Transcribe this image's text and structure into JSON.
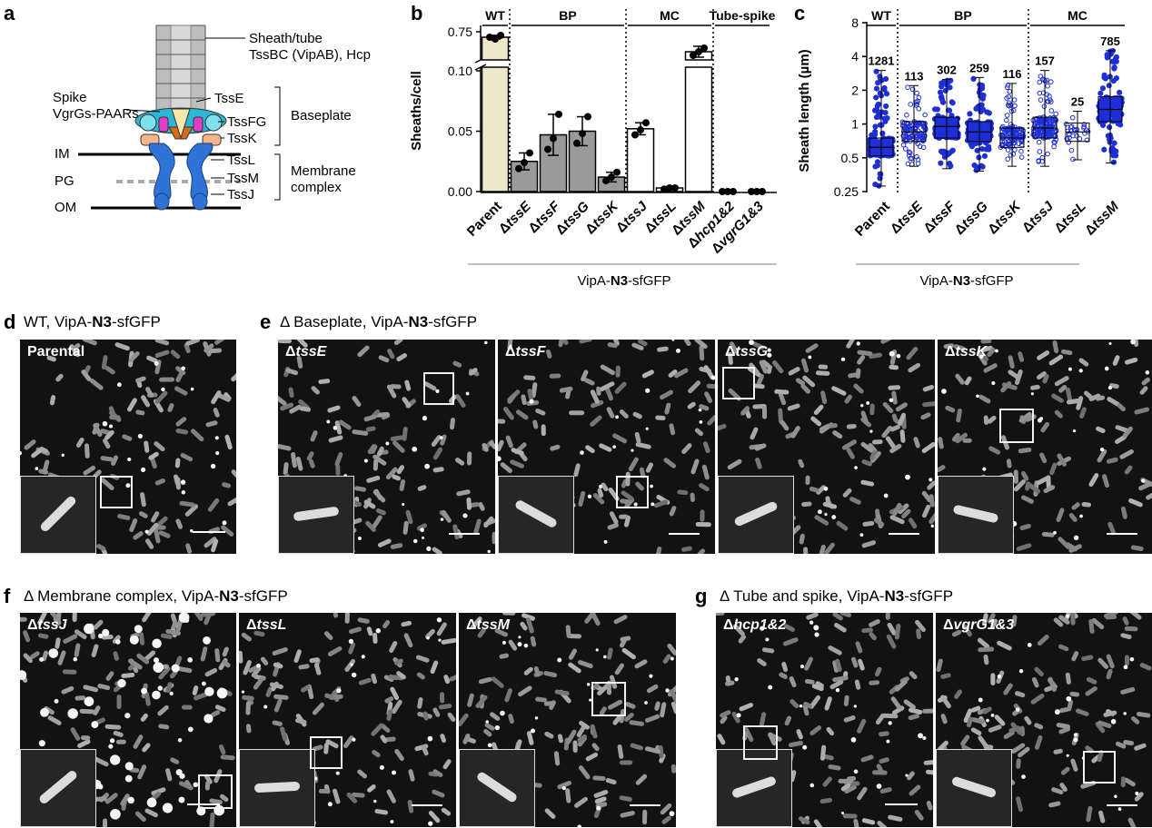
{
  "panels": {
    "a": {
      "letter": "a"
    },
    "b": {
      "letter": "b"
    },
    "c": {
      "letter": "c"
    },
    "d": {
      "letter": "d",
      "title_prefix": "WT, VipA-",
      "title_bold": "N3",
      "title_suffix": "-sfGFP"
    },
    "e": {
      "letter": "e",
      "title_prefix": "Δ Baseplate, VipA-",
      "title_bold": "N3",
      "title_suffix": "-sfGFP"
    },
    "f": {
      "letter": "f",
      "title_prefix": "Δ Membrane complex, VipA-",
      "title_bold": "N3",
      "title_suffix": "-sfGFP"
    },
    "g": {
      "letter": "g",
      "title_prefix": "Δ Tube and spike, VipA-",
      "title_bold": "N3",
      "title_suffix": "-sfGFP"
    }
  },
  "diagram": {
    "sheath_label_1": "Sheath/tube",
    "sheath_label_2": "TssBC (VipAB), Hcp",
    "spike_label_1": "Spike",
    "spike_label_2": "VgrGs-PAARs",
    "tsse": "TssE",
    "tssfg": "TssFG",
    "tssk": "TssK",
    "baseplate": "Baseplate",
    "tssl": "TssL",
    "tssm": "TssM",
    "tssj": "TssJ",
    "membrane_1": "Membrane",
    "membrane_2": "complex",
    "im": "IM",
    "pg": "PG",
    "om": "OM"
  },
  "chart_data": [
    {
      "type": "bar",
      "panel": "b",
      "ylabel": "Sheaths/cell",
      "xlabel_prefix": "VipA-",
      "xlabel_bold": "N3",
      "xlabel_suffix": "-sfGFP",
      "broken_axis": true,
      "yticks": [
        "0.00",
        "0.05",
        "0.10",
        "0.75"
      ],
      "groups": [
        {
          "label": "WT",
          "categories": [
            "Parent"
          ]
        },
        {
          "label": "BP",
          "categories": [
            "ΔtssE",
            "ΔtssF",
            "ΔtssG",
            "ΔtssK"
          ]
        },
        {
          "label": "MC",
          "categories": [
            "ΔtssJ",
            "ΔtssL",
            "ΔtssM"
          ]
        },
        {
          "label": "Tube-spike",
          "categories": [
            "Δhcp1&2",
            "ΔvgrG1&3"
          ]
        }
      ],
      "categories": [
        "Parent",
        "ΔtssE",
        "ΔtssF",
        "ΔtssG",
        "ΔtssK",
        "ΔtssJ",
        "ΔtssL",
        "ΔtssM",
        "Δhcp1&2",
        "ΔvgrG1&3"
      ],
      "values": [
        0.72,
        0.025,
        0.047,
        0.05,
        0.012,
        0.052,
        0.003,
        0.64,
        0.0,
        0.0
      ],
      "errors": [
        0.01,
        0.007,
        0.017,
        0.012,
        0.004,
        0.005,
        0.001,
        0.03,
        0.0,
        0.0
      ],
      "points": [
        [
          0.72,
          0.71,
          0.73
        ],
        [
          0.019,
          0.024,
          0.032
        ],
        [
          0.035,
          0.044,
          0.064
        ],
        [
          0.04,
          0.048,
          0.062
        ],
        [
          0.009,
          0.012,
          0.016
        ],
        [
          0.047,
          0.051,
          0.057
        ],
        [
          0.002,
          0.003,
          0.003
        ],
        [
          0.62,
          0.64,
          0.66
        ],
        [
          0,
          0,
          0
        ],
        [
          0,
          0,
          0
        ]
      ],
      "bar_colors": [
        "#efe7c9",
        "#9a9a9a",
        "#9a9a9a",
        "#9a9a9a",
        "#9a9a9a",
        "#ffffff",
        "#ffffff",
        "#ffffff",
        "#ffffff",
        "#ffffff"
      ]
    },
    {
      "type": "scatter",
      "panel": "c",
      "ylabel": "Sheath length (µm)",
      "xlabel_prefix": "VipA-",
      "xlabel_bold": "N3",
      "xlabel_suffix": "-sfGFP",
      "y_scale": "log2",
      "ylim": [
        0.25,
        8
      ],
      "yticks": [
        "0.25",
        "0.5",
        "1",
        "2",
        "4",
        "8"
      ],
      "groups": [
        {
          "label": "WT",
          "categories": [
            "Parent"
          ]
        },
        {
          "label": "BP",
          "categories": [
            "ΔtssE",
            "ΔtssF",
            "ΔtssG",
            "ΔtssK"
          ]
        },
        {
          "label": "MC",
          "categories": [
            "ΔtssJ",
            "ΔtssL",
            "ΔtssM"
          ]
        }
      ],
      "categories": [
        "Parent",
        "ΔtssE",
        "ΔtssF",
        "ΔtssG",
        "ΔtssK",
        "ΔtssJ",
        "ΔtssL",
        "ΔtssM"
      ],
      "counts": [
        "1281",
        "113",
        "302",
        "259",
        "116",
        "157",
        "25",
        "785"
      ],
      "median": [
        0.62,
        0.85,
        0.95,
        0.85,
        0.75,
        0.92,
        0.85,
        1.35
      ],
      "q1": [
        0.52,
        0.7,
        0.75,
        0.7,
        0.62,
        0.75,
        0.7,
        1.05
      ],
      "q3": [
        0.75,
        1.05,
        1.15,
        1.05,
        0.92,
        1.15,
        1.02,
        1.75
      ],
      "min": [
        0.28,
        0.42,
        0.4,
        0.38,
        0.42,
        0.42,
        0.48,
        0.45
      ],
      "max": [
        3.0,
        2.2,
        2.5,
        2.6,
        2.3,
        3.0,
        1.3,
        4.5
      ],
      "color": "#1f2fd6"
    }
  ],
  "micrographs": {
    "d": [
      {
        "label": "Parental",
        "italic": false
      }
    ],
    "e": [
      {
        "label_prefix": "Δ",
        "label_italic": "tssE"
      },
      {
        "label_prefix": "Δ",
        "label_italic": "tssF"
      },
      {
        "label_prefix": "Δ",
        "label_italic": "tssG"
      },
      {
        "label_prefix": "Δ",
        "label_italic": "tssK"
      }
    ],
    "f": [
      {
        "label_prefix": "Δ",
        "label_italic": "tssJ"
      },
      {
        "label_prefix": "Δ",
        "label_italic": "tssL"
      },
      {
        "label_prefix": "Δ",
        "label_italic": "tssM"
      }
    ],
    "g": [
      {
        "label_prefix": "Δ",
        "label_italic": "hcp1&2"
      },
      {
        "label_prefix": "Δ",
        "label_italic": "vgrG1&3"
      }
    ]
  }
}
